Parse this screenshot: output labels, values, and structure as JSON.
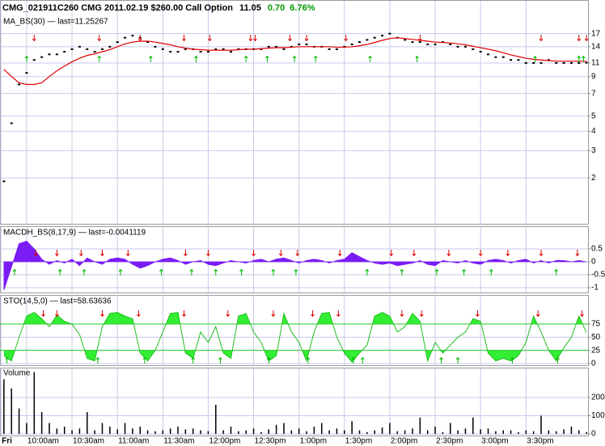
{
  "chart_data": {
    "type": "financial",
    "title": "CMG_021911C260 CMG 2011.02.19 $260.00 Call Option",
    "quote": {
      "last": "11.05",
      "change": "0.70",
      "change_percent": "6.76%",
      "change_color": "#009900"
    },
    "grid": true,
    "signal_colors": {
      "down": "#dd0000",
      "up": "#00bb00"
    },
    "xlim": [
      12.4,
      401
    ],
    "xticks": [
      {
        "value": 13,
        "label": "Fri"
      },
      {
        "value": 30,
        "label": "10:00am"
      },
      {
        "value": 60,
        "label": "10:30am"
      },
      {
        "value": 90,
        "label": "11:00am"
      },
      {
        "value": 120,
        "label": "11:30am"
      },
      {
        "value": 150,
        "label": "12:00pm"
      },
      {
        "value": 180,
        "label": "12:30pm"
      },
      {
        "value": 210,
        "label": "1:00pm"
      },
      {
        "value": 240,
        "label": "1:30pm"
      },
      {
        "value": 270,
        "label": "2:00pm"
      },
      {
        "value": 300,
        "label": "2:30pm"
      },
      {
        "value": 330,
        "label": "3:00pm"
      },
      {
        "value": 360,
        "label": "3:30pm"
      }
    ],
    "x": [
      15,
      20,
      25,
      30,
      35,
      40,
      45,
      50,
      55,
      60,
      65,
      70,
      75,
      80,
      85,
      90,
      95,
      100,
      105,
      110,
      115,
      120,
      125,
      130,
      135,
      140,
      145,
      150,
      155,
      160,
      165,
      170,
      175,
      180,
      185,
      190,
      195,
      200,
      205,
      210,
      215,
      220,
      225,
      230,
      235,
      240,
      245,
      250,
      255,
      260,
      265,
      270,
      275,
      280,
      285,
      290,
      295,
      300,
      305,
      310,
      315,
      320,
      325,
      330,
      335,
      340,
      345,
      350,
      355,
      360,
      365,
      370,
      375,
      380,
      385,
      390,
      395,
      400
    ],
    "panels": [
      {
        "type": "line",
        "log_scale": true,
        "ylim": [
          1,
          28
        ],
        "yticks": [
          2,
          3,
          4,
          5,
          7,
          9,
          11,
          14,
          17
        ],
        "series": [
          {
            "style": "tick",
            "color": "#000000",
            "values": [
              1.9,
              4.5,
              8,
              9.5,
              11.5,
              12,
              12.5,
              12.5,
              13,
              13.5,
              14,
              13.5,
              13,
              13.5,
              14,
              15,
              16,
              16.5,
              16,
              15,
              14,
              13.5,
              13,
              13,
              13.5,
              13.5,
              13,
              13,
              13.5,
              13.5,
              13,
              13.5,
              13.5,
              13.5,
              13.5,
              14,
              14,
              13.5,
              14,
              14.5,
              14.5,
              14,
              14,
              13.5,
              13.5,
              14,
              14.5,
              15,
              15.5,
              16,
              16.5,
              17,
              16,
              15.5,
              15,
              15,
              14.5,
              14.5,
              15,
              14.5,
              14,
              14,
              13.5,
              13,
              12.5,
              12,
              12,
              11.5,
              11.5,
              11,
              11,
              11,
              11.5,
              11,
              11,
              11,
              11,
              11.05
            ]
          },
          {
            "name": "MA_BS(30) — last=11.25267",
            "style": "line",
            "color": "#e00000",
            "values": [
              10,
              9,
              8.2,
              8,
              8,
              8.2,
              9,
              9.8,
              10.5,
              11.2,
              11.8,
              12.3,
              12.6,
              13,
              13.4,
              14,
              14.6,
              15,
              15.2,
              15.2,
              15,
              14.7,
              14.4,
              14,
              13.7,
              13.5,
              13.4,
              13.3,
              13.3,
              13.3,
              13.3,
              13.4,
              13.5,
              13.5,
              13.6,
              13.7,
              13.8,
              13.8,
              13.9,
              14,
              14,
              14,
              14,
              14,
              13.9,
              13.9,
              14,
              14.2,
              14.5,
              14.9,
              15.4,
              15.8,
              16,
              15.8,
              15.6,
              15.4,
              15.2,
              15,
              14.9,
              14.8,
              14.6,
              14.4,
              14.1,
              13.8,
              13.5,
              13.2,
              12.8,
              12.4,
              12.1,
              11.8,
              11.6,
              11.5,
              11.4,
              11.3,
              11.3,
              11.3,
              11.3,
              11.25267
            ]
          }
        ],
        "signals": {
          "down": [
            35,
            78,
            105,
            134,
            151,
            178,
            181,
            204,
            215,
            241,
            290,
            370,
            395,
            400
          ],
          "up": [
            30,
            78,
            112,
            142,
            175,
            189,
            207,
            221,
            257,
            288,
            366,
            395,
            398
          ]
        }
      },
      {
        "type": "area",
        "ylim": [
          -1.22,
          1.375
        ],
        "yticks": [
          -1,
          -0.5,
          0,
          0.5
        ],
        "series": [
          {
            "name": "MACDH_BS(8,17,9) — last=-0.0041119",
            "color": "#7a1cf5",
            "values": [
              -1.1,
              -0.2,
              0.7,
              0.8,
              0.5,
              0.1,
              -0.1,
              0.05,
              -0.05,
              0.1,
              -0.15,
              0.15,
              0,
              -0.1,
              0.1,
              0.15,
              0.1,
              -0.1,
              -0.25,
              -0.15,
              0,
              0.1,
              0.15,
              0.05,
              -0.1,
              0,
              0.05,
              -0.1,
              -0.15,
              -0.05,
              0.05,
              0,
              -0.05,
              0.05,
              0.1,
              0,
              0.1,
              0.15,
              0.05,
              -0.05,
              0.05,
              0.1,
              0.05,
              -0.05,
              0.05,
              0.1,
              0.35,
              0.2,
              0.05,
              -0.05,
              -0.1,
              -0.05,
              -0.15,
              -0.1,
              -0.05,
              0.05,
              -0.1,
              -0.15,
              0.05,
              0,
              -0.05,
              0.05,
              -0.05,
              -0.1,
              0.05,
              0.1,
              0.05,
              -0.05,
              0.05,
              0.1,
              -0.05,
              0.05,
              -0.05,
              0.05,
              0.05,
              0,
              0.05,
              -0.0041119
            ]
          }
        ],
        "signals": {
          "down": [
            36,
            50,
            66,
            80,
            97,
            135,
            150,
            180,
            198,
            209,
            237,
            271,
            286,
            309,
            330,
            348,
            370,
            394
          ],
          "up": [
            22,
            52,
            68,
            92,
            119,
            139,
            155,
            172,
            193,
            208,
            255,
            278,
            301,
            319,
            337,
            380
          ]
        }
      },
      {
        "type": "oscillator",
        "ylim": [
          -4.6,
          130.2
        ],
        "yticks": [
          0,
          25,
          50,
          75
        ],
        "bands": [
          25,
          75
        ],
        "band_color": "#22cc22",
        "series": [
          {
            "name": "STO(14,5,0) — last=58.63636",
            "color": "#1fbf1f",
            "fill": "#33ee33",
            "values": [
              15,
              5,
              50,
              90,
              97,
              85,
              70,
              92,
              80,
              75,
              55,
              10,
              5,
              70,
              95,
              97,
              90,
              85,
              20,
              5,
              25,
              60,
              95,
              97,
              20,
              10,
              60,
              40,
              70,
              20,
              10,
              90,
              95,
              60,
              40,
              5,
              15,
              95,
              60,
              40,
              5,
              60,
              95,
              97,
              50,
              20,
              3,
              20,
              35,
              90,
              97,
              90,
              60,
              70,
              95,
              80,
              5,
              40,
              20,
              35,
              50,
              60,
              85,
              80,
              20,
              5,
              10,
              5,
              15,
              40,
              90,
              60,
              25,
              5,
              30,
              50,
              90,
              58.63636
            ]
          }
        ],
        "signals": {
          "down": [
            41,
            50,
            80,
            104,
            134,
            163,
            193,
            219,
            236,
            278,
            291,
            328,
            368,
            397
          ],
          "up": [
            17,
            77,
            108,
            140,
            158,
            190,
            216,
            246,
            252,
            304,
            315,
            351,
            381
          ]
        }
      },
      {
        "type": "bar",
        "ylim": [
          -13,
          364
        ],
        "yticks": [
          0,
          100,
          200
        ],
        "series": [
          {
            "name": "Volume",
            "color": "#000000",
            "values": [
              300,
              250,
              140,
              60,
              340,
              120,
              60,
              30,
              40,
              20,
              30,
              120,
              20,
              60,
              40,
              25,
              60,
              30,
              40,
              20,
              15,
              20,
              30,
              40,
              25,
              30,
              20,
              15,
              160,
              20,
              40,
              15,
              20,
              30,
              10,
              25,
              50,
              60,
              20,
              30,
              15,
              40,
              60,
              20,
              30,
              20,
              70,
              20,
              10,
              20,
              35,
              60,
              15,
              20,
              30,
              90,
              20,
              40,
              10,
              60,
              20,
              30,
              90,
              25,
              30,
              15,
              20,
              20,
              10,
              20,
              15,
              100,
              20,
              15,
              25,
              40,
              20,
              10
            ]
          }
        ]
      }
    ]
  }
}
